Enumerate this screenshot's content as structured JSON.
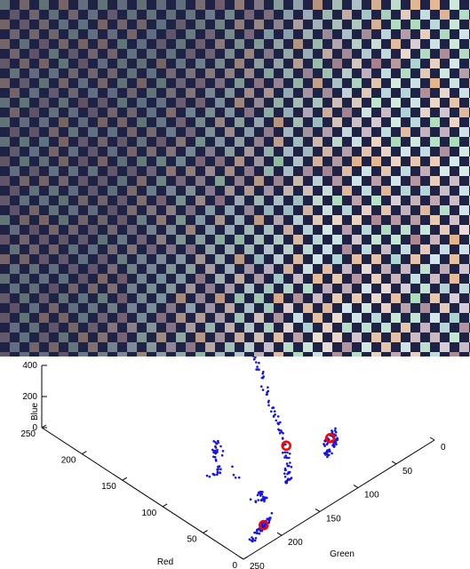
{
  "photo": {
    "description_icon": "checkerboard-photo",
    "colors": {
      "dark": "#1e2245",
      "left_light": "#8a8a96",
      "right_light": "#f0f4fb",
      "accent_orange": "#d7853f",
      "accent_green": "#7cc98f",
      "accent_teal": "#7ab8b1",
      "accent_maroon": "#7a3b46"
    }
  },
  "chart_data": {
    "type": "scatter",
    "projection": "3d",
    "axes": {
      "x": {
        "label": "Red",
        "ticks": [
          "0",
          "50",
          "100",
          "150",
          "200",
          "250"
        ],
        "range": [
          0,
          250
        ]
      },
      "y": {
        "label": "Green",
        "ticks": [
          "0",
          "50",
          "100",
          "150",
          "200",
          "250"
        ],
        "range": [
          0,
          250
        ]
      },
      "z": {
        "label": "Blue",
        "ticks": [
          "0",
          "200",
          "400"
        ],
        "range": [
          0,
          400
        ]
      }
    },
    "grid": false,
    "point_color": "#1414e6",
    "centroid_color": "#ff0000",
    "series": [
      {
        "points": [
          [
            230,
            20,
            100
          ],
          [
            215,
            25,
            105
          ],
          [
            200,
            35,
            110
          ],
          [
            185,
            45,
            108
          ],
          [
            170,
            55,
            112
          ],
          [
            155,
            65,
            110
          ],
          [
            140,
            75,
            108
          ],
          [
            125,
            85,
            106
          ],
          [
            110,
            95,
            104
          ],
          [
            100,
            102,
            102
          ],
          [
            90,
            108,
            100
          ],
          [
            80,
            115,
            98
          ],
          [
            70,
            122,
            96
          ],
          [
            60,
            130,
            95
          ],
          [
            50,
            138,
            92
          ],
          [
            45,
            145,
            90
          ],
          [
            40,
            150,
            88
          ],
          [
            35,
            155,
            85
          ]
        ]
      },
      {
        "points": [
          [
            20,
            110,
            280
          ],
          [
            25,
            105,
            270
          ],
          [
            30,
            100,
            275
          ],
          [
            15,
            115,
            265
          ],
          [
            22,
            108,
            260
          ],
          [
            10,
            130,
            260
          ],
          [
            15,
            125,
            255
          ],
          [
            28,
            112,
            250
          ]
        ]
      },
      {
        "points": [
          [
            5,
            220,
            85
          ],
          [
            8,
            215,
            80
          ],
          [
            12,
            210,
            88
          ],
          [
            6,
            225,
            78
          ],
          [
            10,
            205,
            90
          ],
          [
            4,
            230,
            82
          ],
          [
            14,
            200,
            86
          ],
          [
            2,
            235,
            75
          ]
        ]
      },
      {
        "points": [
          [
            100,
            190,
            20
          ],
          [
            95,
            180,
            18
          ],
          [
            110,
            170,
            22
          ],
          [
            120,
            160,
            15
          ],
          [
            130,
            150,
            20
          ],
          [
            45,
            190,
            30
          ],
          [
            40,
            180,
            28
          ],
          [
            50,
            175,
            25
          ]
        ]
      }
    ],
    "centroids": [
      [
        230,
        20,
        100
      ],
      [
        70,
        120,
        95
      ],
      [
        25,
        110,
        265
      ],
      [
        8,
        215,
        85
      ]
    ]
  }
}
